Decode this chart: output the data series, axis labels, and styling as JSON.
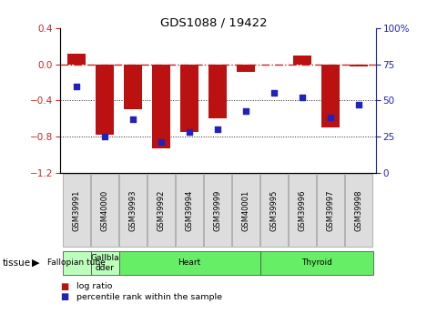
{
  "title": "GDS1088 / 19422",
  "samples": [
    "GSM39991",
    "GSM40000",
    "GSM39993",
    "GSM39992",
    "GSM39994",
    "GSM39999",
    "GSM40001",
    "GSM39995",
    "GSM39996",
    "GSM39997",
    "GSM39998"
  ],
  "log_ratio": [
    0.12,
    -0.78,
    -0.5,
    -0.93,
    -0.75,
    -0.6,
    -0.08,
    0.0,
    0.1,
    -0.7,
    -0.02
  ],
  "percentile_rank": [
    60,
    25,
    37,
    21,
    28,
    30,
    43,
    55,
    52,
    38,
    47
  ],
  "ylim_left": [
    -1.2,
    0.4
  ],
  "ylim_right": [
    0,
    100
  ],
  "yticks_left": [
    -1.2,
    -0.8,
    -0.4,
    0.0,
    0.4
  ],
  "yticks_right": [
    0,
    25,
    50,
    75,
    100
  ],
  "hlines": [
    -0.8,
    -0.4
  ],
  "bar_color": "#bb1111",
  "dot_color": "#2222bb",
  "zero_line_color": "#cc2222",
  "dotted_line_color": "#222222",
  "background_color": "#ffffff",
  "tissue_groups": [
    {
      "label": "Fallopian tube",
      "start": 0,
      "end": 1,
      "color": "#bbffbb"
    },
    {
      "label": "Gallbla\ndder",
      "start": 1,
      "end": 2,
      "color": "#bbffbb"
    },
    {
      "label": "Heart",
      "start": 2,
      "end": 7,
      "color": "#66ee66"
    },
    {
      "label": "Thyroid",
      "start": 7,
      "end": 11,
      "color": "#66ee66"
    }
  ],
  "legend_items": [
    {
      "label": "log ratio",
      "color": "#bb1111"
    },
    {
      "label": "percentile rank within the sample",
      "color": "#2222bb"
    }
  ],
  "tissue_label": "tissue"
}
